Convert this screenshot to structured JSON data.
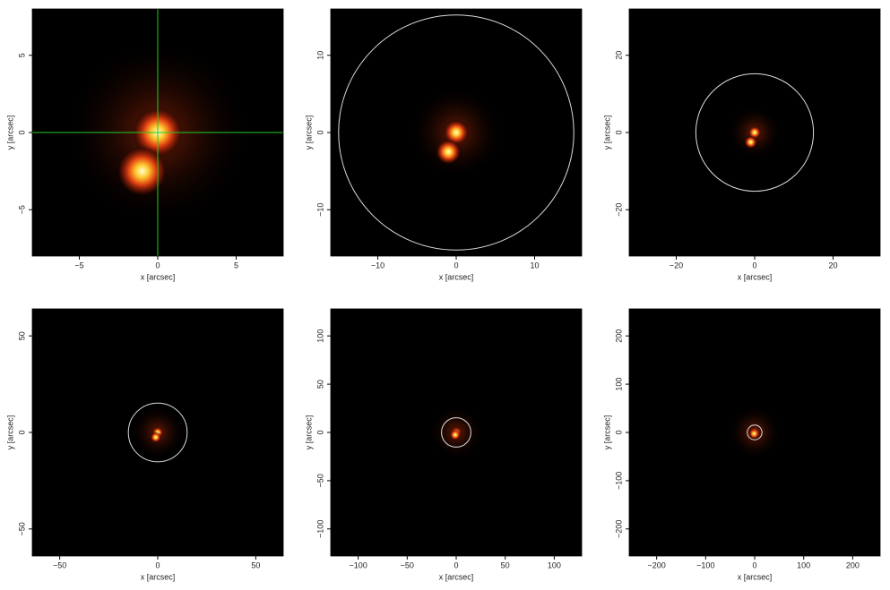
{
  "chart_data": [
    {
      "type": "image",
      "xlabel": "x [arcsec]",
      "ylabel": "y [arcsec]",
      "xlim": [
        -8,
        8
      ],
      "ylim": [
        -8,
        8
      ],
      "xticks": [
        {
          "value": -5,
          "label": "−5"
        },
        0,
        5
      ],
      "yticks": [
        {
          "value": -5,
          "label": "−5"
        },
        0,
        5
      ],
      "crosshair": {
        "x": 0,
        "y": 0,
        "color": "#22cc22"
      },
      "sources": [
        {
          "x": 0,
          "y": 0
        },
        {
          "x": -1,
          "y": -2.5
        }
      ]
    },
    {
      "type": "image",
      "xlabel": "x [arcsec]",
      "ylabel": "y [arcsec]",
      "xlim": [
        -16,
        16
      ],
      "ylim": [
        -16,
        16
      ],
      "xticks": [
        {
          "value": -10,
          "label": "−10"
        },
        0,
        10
      ],
      "yticks": [
        {
          "value": -10,
          "label": "−10"
        },
        0,
        10
      ],
      "circle_radius": 15,
      "sources": [
        {
          "x": 0,
          "y": 0
        },
        {
          "x": -1,
          "y": -2.5
        }
      ]
    },
    {
      "type": "image",
      "xlabel": "x [arcsec]",
      "ylabel": "y [arcsec]",
      "xlim": [
        -32,
        32
      ],
      "ylim": [
        -32,
        32
      ],
      "xticks": [
        {
          "value": -20,
          "label": "−20"
        },
        0,
        20
      ],
      "yticks": [
        {
          "value": -20,
          "label": "−20"
        },
        0,
        20
      ],
      "circle_radius": 15,
      "sources": [
        {
          "x": 0,
          "y": 0
        },
        {
          "x": -1,
          "y": -2.5
        }
      ]
    },
    {
      "type": "image",
      "xlabel": "x [arcsec]",
      "ylabel": "y [arcsec]",
      "xlim": [
        -64,
        64
      ],
      "ylim": [
        -64,
        64
      ],
      "xticks": [
        {
          "value": -50,
          "label": "−50"
        },
        0,
        50
      ],
      "yticks": [
        {
          "value": -50,
          "label": "−50"
        },
        0,
        50
      ],
      "circle_radius": 15,
      "sources": [
        {
          "x": 0,
          "y": 0
        },
        {
          "x": -1,
          "y": -2.5
        }
      ]
    },
    {
      "type": "image",
      "xlabel": "x [arcsec]",
      "ylabel": "y [arcsec]",
      "xlim": [
        -128,
        128
      ],
      "ylim": [
        -128,
        128
      ],
      "xticks": [
        {
          "value": -100,
          "label": "−100"
        },
        {
          "value": -50,
          "label": "−50"
        },
        0,
        50,
        100
      ],
      "yticks": [
        {
          "value": -100,
          "label": "−100"
        },
        {
          "value": -50,
          "label": "−50"
        },
        0,
        50,
        100
      ],
      "circle_radius": 15,
      "sources": [
        {
          "x": 0,
          "y": 0
        },
        {
          "x": -1,
          "y": -2.5
        }
      ]
    },
    {
      "type": "image",
      "xlabel": "x [arcsec]",
      "ylabel": "y [arcsec]",
      "xlim": [
        -256,
        256
      ],
      "ylim": [
        -256,
        256
      ],
      "xticks": [
        {
          "value": -200,
          "label": "−200"
        },
        {
          "value": -100,
          "label": "−100"
        },
        0,
        100,
        200
      ],
      "yticks": [
        {
          "value": -200,
          "label": "−200"
        },
        {
          "value": -100,
          "label": "−100"
        },
        0,
        100,
        200
      ],
      "circle_radius": 15,
      "sources": [
        {
          "x": 0,
          "y": 0
        },
        {
          "x": -1,
          "y": -2.5
        }
      ]
    }
  ]
}
